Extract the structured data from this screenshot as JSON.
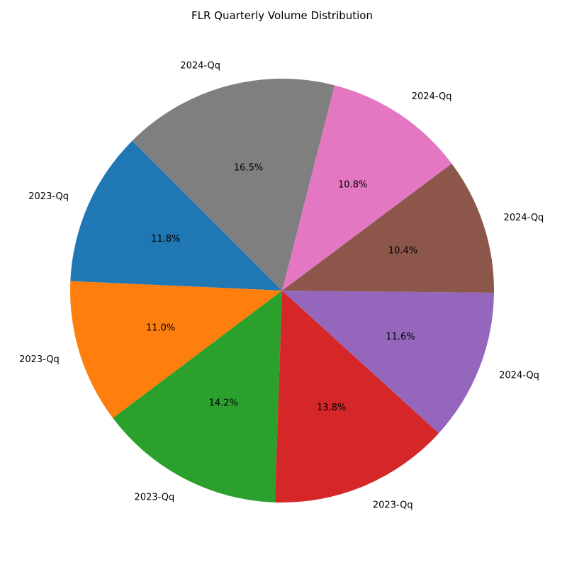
{
  "chart_data": {
    "type": "pie",
    "title": "FLR Quarterly Volume Distribution",
    "labels": [
      "2023-Qq",
      "2023-Qq",
      "2023-Qq",
      "2023-Qq",
      "2024-Qq",
      "2024-Qq",
      "2024-Qq",
      "2024-Qq"
    ],
    "values": [
      11.8,
      11.0,
      14.2,
      13.8,
      11.6,
      10.4,
      10.8,
      16.5
    ],
    "value_labels": [
      "11.8%",
      "11.0%",
      "14.2%",
      "13.8%",
      "11.6%",
      "10.4%",
      "10.8%",
      "16.5%"
    ],
    "colors": [
      "#1f77b4",
      "#ff7f0e",
      "#2ca02c",
      "#d62728",
      "#9467bd",
      "#8c564b",
      "#e377c2",
      "#7f7f7f"
    ],
    "start_angle_deg": 135,
    "direction": "counterclockwise",
    "legend": "none"
  }
}
